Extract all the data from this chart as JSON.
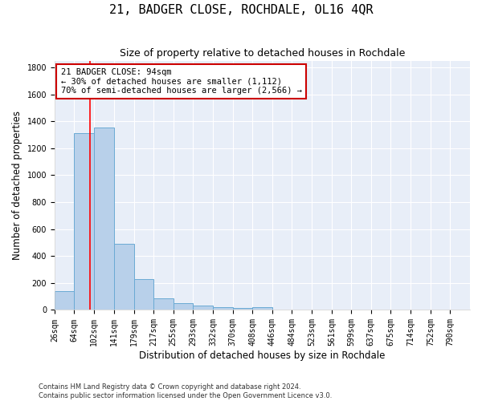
{
  "title": "21, BADGER CLOSE, ROCHDALE, OL16 4QR",
  "subtitle": "Size of property relative to detached houses in Rochdale",
  "xlabel": "Distribution of detached houses by size in Rochdale",
  "ylabel": "Number of detached properties",
  "footnote1": "Contains HM Land Registry data © Crown copyright and database right 2024.",
  "footnote2": "Contains public sector information licensed under the Open Government Licence v3.0.",
  "bin_labels": [
    "26sqm",
    "64sqm",
    "102sqm",
    "141sqm",
    "179sqm",
    "217sqm",
    "255sqm",
    "293sqm",
    "332sqm",
    "370sqm",
    "408sqm",
    "446sqm",
    "484sqm",
    "523sqm",
    "561sqm",
    "599sqm",
    "637sqm",
    "675sqm",
    "714sqm",
    "752sqm",
    "790sqm"
  ],
  "bar_heights": [
    140,
    1310,
    1355,
    490,
    230,
    85,
    50,
    30,
    20,
    15,
    20,
    0,
    0,
    0,
    0,
    0,
    0,
    0,
    0,
    0,
    0
  ],
  "bar_color": "#b8d0ea",
  "bar_edge_color": "#6aaad4",
  "red_line_x": 94,
  "bin_edges_numeric": [
    26,
    64,
    102,
    141,
    179,
    217,
    255,
    293,
    332,
    370,
    408,
    446,
    484,
    523,
    561,
    599,
    637,
    675,
    714,
    752,
    790
  ],
  "ylim": [
    0,
    1850
  ],
  "annotation_text": "21 BADGER CLOSE: 94sqm\n← 30% of detached houses are smaller (1,112)\n70% of semi-detached houses are larger (2,566) →",
  "annotation_box_color": "#ffffff",
  "annotation_box_edge": "#cc0000",
  "background_color": "#e8eef8",
  "grid_color": "#ffffff",
  "fig_background": "#ffffff",
  "title_fontsize": 11,
  "subtitle_fontsize": 9,
  "axis_label_fontsize": 8.5,
  "tick_fontsize": 7,
  "annotation_fontsize": 7.5,
  "footnote_fontsize": 6
}
